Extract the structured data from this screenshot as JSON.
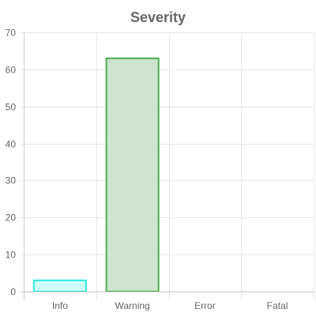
{
  "chart_data": {
    "type": "bar",
    "title": "Severity",
    "categories": [
      "Info",
      "Warning",
      "Error",
      "Fatal"
    ],
    "values": [
      3,
      63,
      0,
      0
    ],
    "ylim": [
      0,
      70
    ],
    "yticks": [
      0,
      10,
      20,
      30,
      40,
      50,
      60,
      70
    ],
    "grid": true,
    "legend": "none",
    "bar_fill_colors": [
      "#ccffff",
      "#cce5cc",
      "#ffcccc",
      "#e0ccf0"
    ],
    "bar_border_colors": [
      "#33e6e6",
      "#4caf50",
      "#e06060",
      "#9966cc"
    ]
  }
}
